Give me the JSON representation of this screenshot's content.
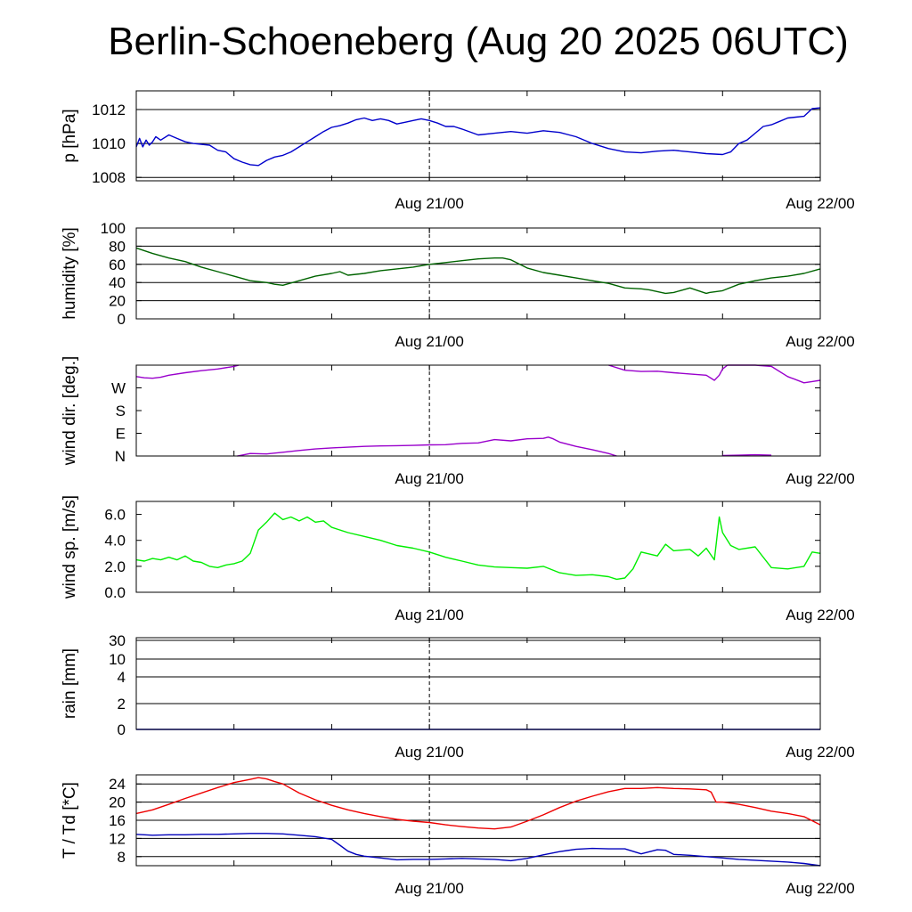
{
  "title": "Berlin-Schoeneberg (Aug 20 2025 06UTC)",
  "chart_data": [
    {
      "type": "line",
      "ylabel": "p [hPa]",
      "x_unit": "hours from Aug 20 06UTC",
      "xlim": [
        0,
        42
      ],
      "x_tick_labels": [
        {
          "x": 18,
          "label": "Aug 21/00"
        },
        {
          "x": 42,
          "label": "Aug 22/00"
        }
      ],
      "ylim": [
        1007.8,
        1013.1
      ],
      "yticks": [
        1008,
        1010,
        1012
      ],
      "ytick_labels": [
        "1008",
        "1010",
        "1012"
      ],
      "grid_y": [
        1008,
        1010,
        1012
      ],
      "series": [
        {
          "color": "#0000cc",
          "x": [
            0,
            0.2,
            0.4,
            0.6,
            0.8,
            1,
            1.2,
            1.5,
            2,
            2.5,
            3,
            3.5,
            4,
            4.5,
            5,
            5.5,
            6,
            6.5,
            7,
            7.5,
            8,
            8.5,
            9,
            9.5,
            10,
            10.5,
            11,
            11.5,
            12,
            12.5,
            13,
            13.5,
            14,
            14.5,
            15,
            15.5,
            16,
            16.5,
            17,
            17.5,
            18,
            18.5,
            19,
            19.5,
            20,
            21,
            22,
            23,
            24,
            25,
            26,
            27,
            28,
            29,
            30,
            31,
            32,
            33,
            34,
            35,
            36,
            36.5,
            37,
            37.5,
            38,
            38.5,
            39,
            39.5,
            40,
            40.5,
            41,
            41.5,
            42
          ],
          "y": [
            1009.8,
            1010.3,
            1009.8,
            1010.2,
            1009.9,
            1010.1,
            1010.4,
            1010.2,
            1010.5,
            1010.3,
            1010.1,
            1010.0,
            1009.95,
            1009.9,
            1009.6,
            1009.5,
            1009.1,
            1008.9,
            1008.75,
            1008.7,
            1009.0,
            1009.2,
            1009.3,
            1009.5,
            1009.8,
            1010.1,
            1010.4,
            1010.7,
            1010.95,
            1011.05,
            1011.2,
            1011.4,
            1011.5,
            1011.35,
            1011.45,
            1011.35,
            1011.15,
            1011.25,
            1011.35,
            1011.45,
            1011.35,
            1011.2,
            1011.0,
            1011.0,
            1010.85,
            1010.5,
            1010.6,
            1010.7,
            1010.6,
            1010.75,
            1010.65,
            1010.4,
            1010.0,
            1009.7,
            1009.5,
            1009.45,
            1009.55,
            1009.6,
            1009.5,
            1009.4,
            1009.35,
            1009.5,
            1010.0,
            1010.2,
            1010.6,
            1011.0,
            1011.1,
            1011.3,
            1011.5,
            1011.55,
            1011.6,
            1012.05,
            1012.1
          ]
        }
      ]
    },
    {
      "type": "line",
      "ylabel": "humidity [%]",
      "xlim": [
        0,
        42
      ],
      "x_tick_labels": [
        {
          "x": 18,
          "label": "Aug 21/00"
        },
        {
          "x": 42,
          "label": "Aug 22/00"
        }
      ],
      "ylim": [
        0,
        100
      ],
      "yticks": [
        0,
        20,
        40,
        60,
        80,
        100
      ],
      "ytick_labels": [
        "0",
        "20",
        "40",
        "60",
        "80",
        "100"
      ],
      "grid_y": [
        20,
        40,
        60,
        80
      ],
      "series": [
        {
          "color": "#006400",
          "x": [
            0,
            1,
            2,
            3,
            4,
            5,
            6,
            7,
            8,
            8.5,
            9,
            10,
            11,
            12,
            12.5,
            13,
            14,
            15,
            16,
            17,
            18,
            19,
            20,
            21,
            22,
            22.5,
            23,
            24,
            25,
            26,
            27,
            28,
            29,
            30,
            31,
            31.5,
            32,
            32.5,
            33,
            34,
            35,
            35.2,
            36,
            37,
            38,
            39,
            40,
            41,
            42
          ],
          "y": [
            78,
            72,
            67,
            63,
            57,
            52,
            47,
            42,
            40,
            38,
            37,
            42,
            47,
            50,
            52,
            48,
            50,
            53,
            55,
            57,
            60,
            62,
            64,
            66,
            67,
            67,
            65,
            56,
            51,
            48,
            45,
            42,
            39,
            34,
            33,
            32,
            30,
            28,
            29,
            34,
            28,
            29,
            31,
            38,
            42,
            45,
            47,
            50,
            55
          ]
        }
      ]
    },
    {
      "type": "line",
      "ylabel": "wind dir. [deg.]",
      "xlim": [
        0,
        42
      ],
      "x_tick_labels": [
        {
          "x": 18,
          "label": "Aug 21/00"
        },
        {
          "x": 42,
          "label": "Aug 22/00"
        }
      ],
      "ylim": [
        0,
        360
      ],
      "yticks": [
        0,
        90,
        180,
        270
      ],
      "ytick_labels": [
        "N",
        "E",
        "S",
        "W"
      ],
      "series": [
        {
          "color": "#9900cc",
          "segments": [
            {
              "x": [
                0,
                0.5,
                1,
                1.5,
                2,
                3,
                4,
                5,
                6,
                6.3
              ],
              "y": [
                315,
                310,
                308,
                312,
                320,
                330,
                338,
                345,
                355,
                360
              ]
            },
            {
              "x": [
                6.2,
                7,
                8,
                9,
                10,
                11,
                12,
                13,
                14,
                15,
                16,
                17,
                18,
                19,
                20,
                21,
                22,
                23,
                24,
                25,
                25.3,
                25.6,
                26,
                27,
                28,
                29,
                29.5
              ],
              "y": [
                0,
                10,
                8,
                15,
                22,
                28,
                32,
                35,
                38,
                40,
                41,
                42,
                44,
                45,
                50,
                52,
                65,
                60,
                68,
                70,
                75,
                68,
                55,
                38,
                25,
                10,
                0
              ]
            },
            {
              "x": [
                29,
                30,
                31,
                32,
                33,
                34,
                35,
                35.5,
                35.8,
                36,
                36.3,
                37,
                38,
                39,
                40,
                41,
                41.5,
                42
              ],
              "y": [
                360,
                340,
                335,
                336,
                330,
                325,
                320,
                300,
                320,
                345,
                360,
                360,
                360,
                355,
                315,
                290,
                295,
                300
              ]
            },
            {
              "x": [
                36,
                37,
                38,
                39
              ],
              "y": [
                2,
                3,
                5,
                3
              ]
            }
          ]
        }
      ]
    },
    {
      "type": "line",
      "ylabel": "wind sp. [m/s]",
      "xlim": [
        0,
        42
      ],
      "x_tick_labels": [
        {
          "x": 18,
          "label": "Aug 21/00"
        },
        {
          "x": 42,
          "label": "Aug 22/00"
        }
      ],
      "ylim": [
        0,
        7
      ],
      "yticks": [
        0,
        2,
        4,
        6
      ],
      "ytick_labels": [
        "0.0",
        "2.0",
        "4.0",
        "6.0"
      ],
      "series": [
        {
          "color": "#00ee00",
          "x": [
            0,
            0.5,
            1,
            1.5,
            2,
            2.5,
            3,
            3.5,
            4,
            4.5,
            5,
            5.5,
            6,
            6.5,
            7,
            7.5,
            8,
            8.5,
            9,
            9.5,
            10,
            10.5,
            11,
            11.5,
            12,
            13,
            14,
            15,
            16,
            17,
            18,
            19,
            20,
            21,
            22,
            23,
            24,
            25,
            26,
            27,
            28,
            29,
            29.5,
            30,
            30.5,
            31,
            32,
            32.5,
            33,
            34,
            34.5,
            35,
            35.5,
            35.8,
            36,
            36.5,
            37,
            38,
            39,
            40,
            41,
            41.5,
            42
          ],
          "y": [
            2.5,
            2.4,
            2.6,
            2.5,
            2.7,
            2.5,
            2.8,
            2.4,
            2.3,
            2.0,
            1.9,
            2.1,
            2.2,
            2.4,
            3.0,
            4.8,
            5.4,
            6.1,
            5.6,
            5.8,
            5.5,
            5.8,
            5.4,
            5.5,
            5.0,
            4.6,
            4.3,
            4.0,
            3.6,
            3.4,
            3.1,
            2.7,
            2.4,
            2.1,
            1.95,
            1.9,
            1.85,
            2.0,
            1.5,
            1.3,
            1.35,
            1.2,
            1.0,
            1.1,
            1.8,
            3.1,
            2.8,
            3.7,
            3.2,
            3.3,
            2.8,
            3.4,
            2.5,
            5.8,
            4.6,
            3.6,
            3.3,
            3.5,
            1.9,
            1.8,
            2.0,
            3.1,
            3.0
          ]
        }
      ]
    },
    {
      "type": "line",
      "ylabel": "rain [mm]",
      "xlim": [
        0,
        42
      ],
      "x_tick_labels": [
        {
          "x": 18,
          "label": "Aug 21/00"
        },
        {
          "x": 42,
          "label": "Aug 22/00"
        }
      ],
      "ytick_labels": [
        "0",
        "2",
        "4",
        "10",
        "30"
      ],
      "grid_y": [
        "2",
        "4",
        "10",
        "30"
      ],
      "series": [
        {
          "color": "#0000cc",
          "x": [
            0,
            42
          ],
          "y": [
            0,
            0
          ]
        }
      ]
    },
    {
      "type": "line",
      "ylabel": "T / Td [*C]",
      "xlim": [
        0,
        42
      ],
      "x_tick_labels": [
        {
          "x": 18,
          "label": "Aug 21/00"
        },
        {
          "x": 42,
          "label": "Aug 22/00"
        }
      ],
      "ylim": [
        6,
        26
      ],
      "yticks": [
        8,
        12,
        16,
        20,
        24
      ],
      "ytick_labels": [
        "8",
        "12",
        "16",
        "20",
        "24"
      ],
      "grid_y": [
        8,
        12,
        16,
        20,
        24
      ],
      "series": [
        {
          "name": "T",
          "color": "#ee0000",
          "x": [
            0,
            1,
            2,
            3,
            4,
            5,
            6,
            7,
            7.5,
            8,
            8.5,
            9,
            10,
            11,
            12,
            13,
            14,
            15,
            16,
            17,
            18,
            19,
            20,
            21,
            22,
            23,
            24,
            25,
            26,
            27,
            28,
            29,
            30,
            31,
            32,
            33,
            34,
            35,
            35.3,
            35.6,
            36,
            37,
            38,
            39,
            40,
            41,
            42
          ],
          "y": [
            17.5,
            18.3,
            19.5,
            20.8,
            22.0,
            23.2,
            24.3,
            25.0,
            25.4,
            25.1,
            24.5,
            24.0,
            22.0,
            20.5,
            19.3,
            18.3,
            17.5,
            16.8,
            16.2,
            15.8,
            15.5,
            15.0,
            14.6,
            14.3,
            14.1,
            14.5,
            15.8,
            17.2,
            18.8,
            20.2,
            21.3,
            22.3,
            23.0,
            23.0,
            23.2,
            23.0,
            22.9,
            22.7,
            22.2,
            20.0,
            20.0,
            19.5,
            18.8,
            18.0,
            17.5,
            16.8,
            15.0
          ]
        },
        {
          "name": "Td",
          "color": "#0000bb",
          "x": [
            0,
            1,
            2,
            3,
            4,
            5,
            6,
            7,
            8,
            9,
            10,
            11,
            12,
            12.5,
            13,
            13.5,
            14,
            15,
            16,
            17,
            18,
            19,
            20,
            21,
            22,
            23,
            24,
            25,
            26,
            27,
            28,
            29,
            30,
            31,
            32,
            32.5,
            33,
            33.5,
            34,
            35,
            36,
            37,
            38,
            39,
            40,
            41,
            42
          ],
          "y": [
            12.9,
            12.7,
            12.8,
            12.8,
            12.9,
            12.9,
            13.0,
            13.1,
            13.1,
            13.0,
            12.7,
            12.4,
            11.8,
            10.5,
            9.2,
            8.5,
            8.1,
            7.7,
            7.3,
            7.4,
            7.4,
            7.5,
            7.6,
            7.5,
            7.4,
            7.1,
            7.6,
            8.4,
            9.1,
            9.6,
            9.8,
            9.7,
            9.7,
            8.6,
            9.5,
            9.4,
            8.5,
            8.4,
            8.3,
            8.0,
            7.7,
            7.4,
            7.2,
            7.0,
            6.8,
            6.5,
            6.0
          ]
        }
      ]
    }
  ]
}
